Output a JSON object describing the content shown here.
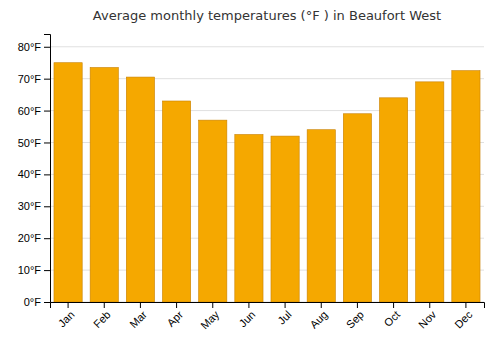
{
  "chart_data": {
    "type": "bar",
    "title": "Average monthly temperatures (°F ) in Beaufort West",
    "categories": [
      "Jan",
      "Feb",
      "Mar",
      "Apr",
      "May",
      "Jun",
      "Jul",
      "Aug",
      "Sep",
      "Oct",
      "Nov",
      "Dec"
    ],
    "values": [
      75.0,
      73.5,
      70.5,
      63.0,
      57.0,
      52.5,
      52.0,
      54.0,
      59.0,
      64.0,
      69.0,
      72.5
    ],
    "color": "#F5A800",
    "ylim": [
      0,
      84
    ],
    "yticks": [
      {
        "value": 0,
        "label": "0°F"
      },
      {
        "value": 10,
        "label": "10°F"
      },
      {
        "value": 20,
        "label": "20°F"
      },
      {
        "value": 30,
        "label": "30°F"
      },
      {
        "value": 40,
        "label": "40°F"
      },
      {
        "value": 50,
        "label": "50°F"
      },
      {
        "value": 60,
        "label": "60°F"
      },
      {
        "value": 70,
        "label": "70°F"
      },
      {
        "value": 80,
        "label": "80°F"
      }
    ],
    "grid": true
  }
}
